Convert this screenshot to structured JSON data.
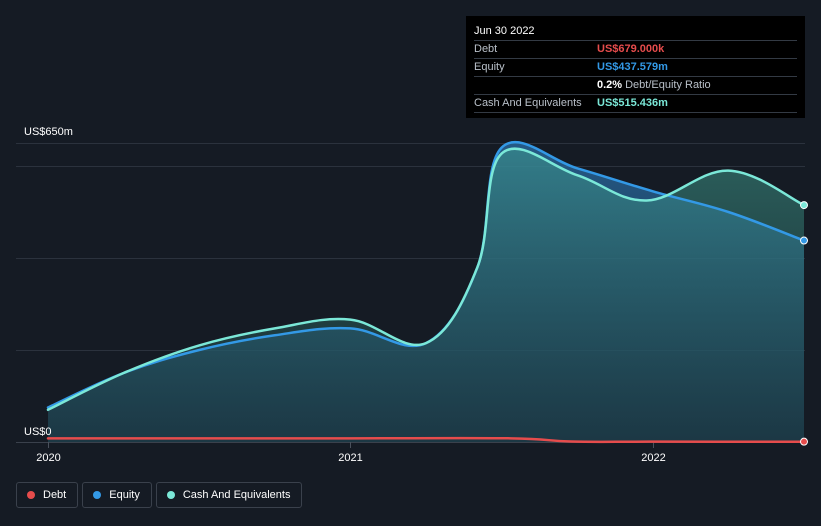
{
  "tooltip": {
    "date": "Jun 30 2022",
    "rows": [
      {
        "label": "Debt",
        "value": "US$679.000k",
        "color": "#e64c4c"
      },
      {
        "label": "Equity",
        "value": "US$437.579m",
        "color": "#3399e6"
      },
      {
        "label": "",
        "value": "0.2%",
        "extra": "Debt/Equity Ratio",
        "color": "#ffffff"
      },
      {
        "label": "Cash And Equivalents",
        "value": "US$515.436m",
        "color": "#7be8d8"
      }
    ]
  },
  "legend": [
    {
      "label": "Debt",
      "color": "#e64c4c"
    },
    {
      "label": "Equity",
      "color": "#3399e6"
    },
    {
      "label": "Cash And Equivalents",
      "color": "#7be8d8"
    }
  ],
  "chart_data": {
    "type": "area",
    "ylabel_top": "US$650m",
    "ylabel_bottom": "US$0",
    "ylim": [
      0,
      650
    ],
    "x_ticks": [
      {
        "label": "2020",
        "t": 2020.0
      },
      {
        "label": "2021",
        "t": 2021.0
      },
      {
        "label": "2022",
        "t": 2022.0
      }
    ],
    "grid": true,
    "series": [
      {
        "name": "Equity",
        "color": "#3399e6",
        "points": [
          [
            2020.0,
            75
          ],
          [
            2020.25,
            150
          ],
          [
            2020.5,
            200
          ],
          [
            2020.75,
            232
          ],
          [
            2021.0,
            247
          ],
          [
            2021.25,
            215
          ],
          [
            2021.42,
            380
          ],
          [
            2021.5,
            640
          ],
          [
            2021.75,
            595
          ],
          [
            2022.0,
            545
          ],
          [
            2022.25,
            500
          ],
          [
            2022.5,
            438
          ]
        ]
      },
      {
        "name": "Cash And Equivalents",
        "color": "#7be8d8",
        "points": [
          [
            2020.0,
            70
          ],
          [
            2020.25,
            150
          ],
          [
            2020.5,
            210
          ],
          [
            2020.75,
            247
          ],
          [
            2021.0,
            266
          ],
          [
            2021.25,
            215
          ],
          [
            2021.42,
            380
          ],
          [
            2021.5,
            627
          ],
          [
            2021.75,
            580
          ],
          [
            2021.98,
            525
          ],
          [
            2022.25,
            590
          ],
          [
            2022.5,
            515
          ]
        ]
      },
      {
        "name": "Debt",
        "color": "#e64c4c",
        "points": [
          [
            2020.0,
            8
          ],
          [
            2020.5,
            8
          ],
          [
            2021.0,
            8
          ],
          [
            2021.53,
            8
          ],
          [
            2021.73,
            1
          ],
          [
            2022.0,
            0.7
          ],
          [
            2022.5,
            0.68
          ]
        ]
      }
    ]
  }
}
